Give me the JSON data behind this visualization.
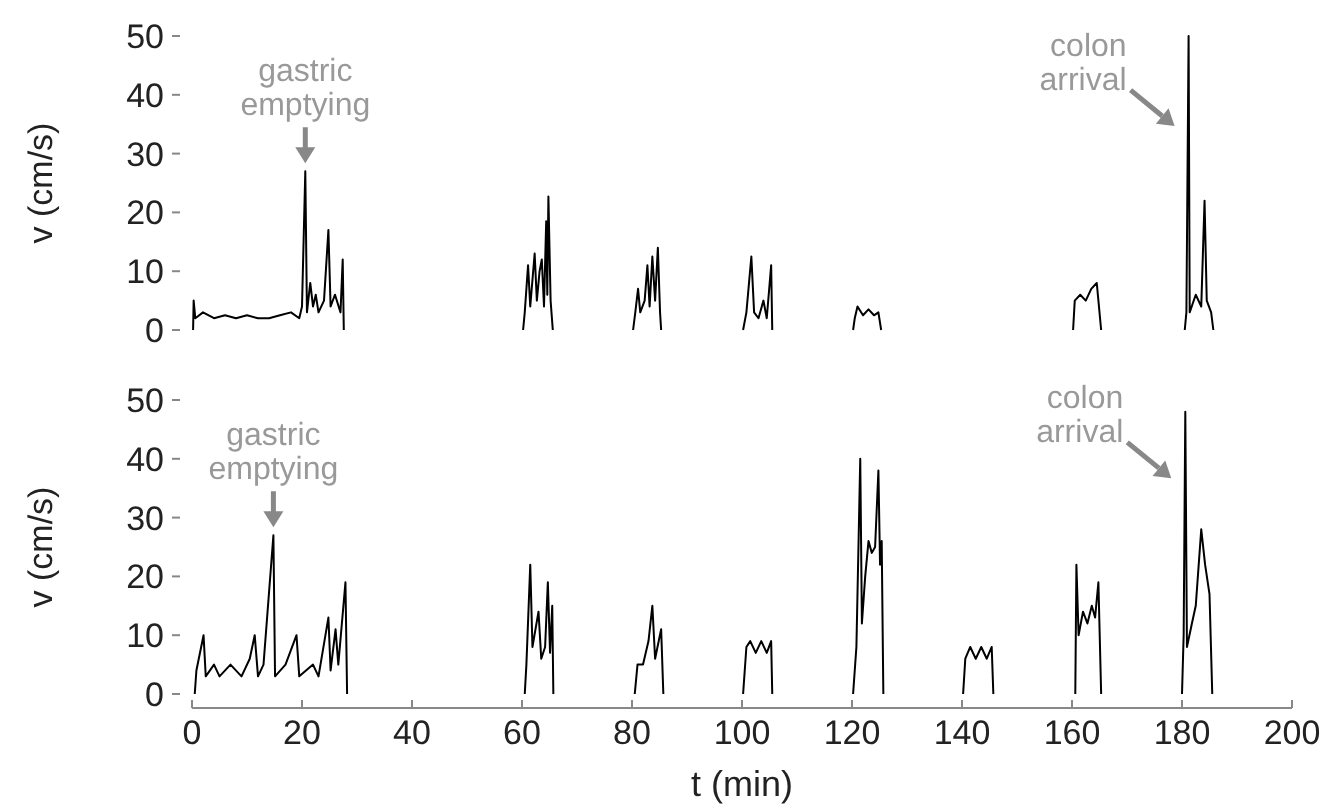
{
  "chart_data": [
    {
      "type": "line",
      "ylabel": "v (cm/s)",
      "xlim": [
        0,
        200
      ],
      "ylim": [
        0,
        50
      ],
      "yticks": [
        0,
        10,
        20,
        30,
        40,
        50
      ],
      "tick_labels": "y",
      "annotations": [
        {
          "text": "gastric\nemptying",
          "x": 20.6,
          "y": 27
        },
        {
          "text": "colon\narrival",
          "x": 181.2,
          "y": 34
        }
      ],
      "series": [
        {
          "color": "#000000",
          "x": [
            0.2,
            0.3,
            0.6,
            2,
            4,
            6,
            8,
            10,
            12,
            14,
            16,
            18,
            19.5,
            20,
            20.6,
            20.9,
            21.5,
            22,
            22.5,
            23,
            24,
            24.8,
            25.2,
            26,
            27,
            27.4,
            27.6,
            44,
            60.2,
            60.5,
            61.1,
            61.5,
            62.3,
            62.7,
            63.2,
            63.6,
            64,
            64.4,
            64.6,
            64.8,
            65.2,
            65.6,
            72,
            80.2,
            80.6,
            81.1,
            81.5,
            82.3,
            82.8,
            83.2,
            83.7,
            84.2,
            84.7,
            85.1,
            85.3,
            92,
            100.2,
            100.8,
            101.7,
            102.2,
            103,
            103.9,
            104.5,
            105.3,
            105.5,
            112,
            120.2,
            120.5,
            121,
            122,
            123,
            124,
            124.8,
            125.3,
            142,
            160.2,
            160.5,
            161.5,
            162.5,
            163.5,
            164.5,
            165.3,
            172,
            180.5,
            180.8,
            181.2,
            181.4,
            182.5,
            183.5,
            184.1,
            184.5,
            185.3,
            185.7
          ],
          "values": [
            0,
            5,
            2,
            3,
            2,
            2.5,
            2,
            2.5,
            2,
            2,
            2.5,
            3,
            2,
            4,
            27,
            3,
            8,
            4,
            6,
            3,
            5,
            17,
            4,
            6,
            3,
            12,
            0,
            null,
            0,
            3,
            11,
            4,
            13,
            5,
            10,
            12,
            4,
            18.5,
            6,
            22.7,
            5,
            0,
            null,
            0,
            3,
            7,
            3,
            5,
            11,
            4,
            12.5,
            5,
            14,
            3,
            0,
            null,
            0,
            3,
            12.5,
            3,
            2,
            5,
            2,
            11,
            0,
            null,
            0,
            2,
            4,
            2.5,
            3.5,
            2.5,
            3,
            0,
            null,
            0,
            5,
            6,
            5,
            7,
            8,
            0,
            null,
            0,
            3,
            50,
            3,
            6,
            4,
            22,
            5,
            3,
            0
          ]
        }
      ]
    },
    {
      "type": "line",
      "xlabel": "t (min)",
      "ylabel": "v (cm/s)",
      "xlim": [
        0,
        200
      ],
      "ylim": [
        0,
        50
      ],
      "xticks": [
        0,
        20,
        40,
        60,
        80,
        100,
        120,
        140,
        160,
        180,
        200
      ],
      "yticks": [
        0,
        10,
        20,
        30,
        40,
        50
      ],
      "annotations": [
        {
          "text": "gastric\nemptying",
          "x": 14.8,
          "y": 27
        },
        {
          "text": "colon\narrival",
          "x": 180.6,
          "y": 36
        }
      ],
      "series": [
        {
          "color": "#000000",
          "x": [
            0.5,
            0.8,
            2.1,
            2.5,
            4,
            5,
            7,
            9,
            10.5,
            11.4,
            12,
            13,
            14.8,
            15.1,
            17,
            19,
            19.5,
            22,
            23,
            24.8,
            25.2,
            26.1,
            26.6,
            27.9,
            28.2,
            44,
            60.5,
            60.8,
            61.5,
            61.9,
            63,
            63.5,
            64.2,
            64.7,
            65.1,
            65.5,
            65.7,
            72,
            80.5,
            81,
            82,
            83,
            83.7,
            84.2,
            85.3,
            85.7,
            92,
            100.2,
            100.8,
            101.5,
            102.5,
            103.5,
            104.5,
            105.3,
            105.5,
            112,
            120.2,
            120.8,
            121.5,
            121.8,
            122.4,
            123,
            123.6,
            124.2,
            124.8,
            125.1,
            125.4,
            125.7,
            132,
            140.2,
            140.6,
            141.5,
            142.5,
            143.5,
            144.5,
            145.4,
            145.7,
            152,
            160.6,
            160.8,
            161.2,
            162,
            162.8,
            163.6,
            164.2,
            164.8,
            165.3,
            172,
            180,
            180.3,
            180.6,
            180.9,
            181.8,
            182.5,
            183.5,
            184.2,
            185,
            185.5
          ],
          "values": [
            0,
            4,
            10,
            3,
            5,
            3,
            5,
            3,
            6,
            10,
            3,
            5,
            27,
            3,
            5,
            10,
            3,
            5,
            3,
            13,
            4,
            11,
            5,
            19,
            0,
            null,
            0,
            5,
            22,
            8,
            14,
            6,
            8,
            19,
            7,
            15,
            0,
            null,
            0,
            5,
            5,
            9,
            15,
            6,
            11,
            0,
            null,
            0,
            8,
            9,
            7,
            9,
            7,
            9,
            0,
            null,
            0,
            8,
            40,
            12,
            20,
            26,
            24,
            25,
            38,
            22,
            26,
            0,
            null,
            0,
            6,
            8,
            6,
            8,
            6,
            8,
            0,
            null,
            0,
            22,
            10,
            14,
            12,
            15,
            13,
            19,
            0,
            null,
            0,
            10,
            48,
            8,
            12,
            15,
            28,
            22,
            17,
            0
          ]
        }
      ]
    }
  ]
}
